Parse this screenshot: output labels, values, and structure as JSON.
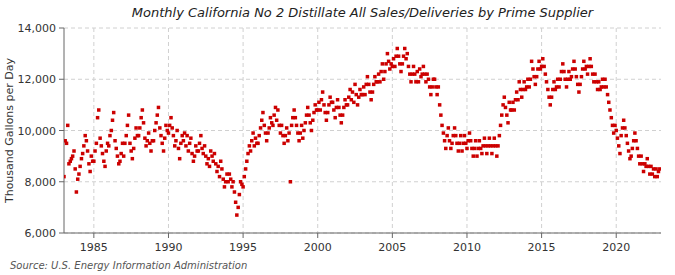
{
  "chart_data": {
    "type": "scatter",
    "title": "Monthly California No 2 Distillate All Sales/Deliveries by Prime Supplier",
    "ylabel": "Thousand Gallons per Day",
    "annotations": [
      "Source: U.S. Energy Information Administration"
    ],
    "color": "#cc0000",
    "marker": "square",
    "grid": true,
    "xlim": [
      1983.0,
      2023.0
    ],
    "ylim": [
      6000,
      14000
    ],
    "xticks": [
      1985,
      1990,
      1995,
      2000,
      2005,
      2010,
      2015,
      2020
    ],
    "yticks": [
      {
        "value": 6000,
        "label": "6,000"
      },
      {
        "value": 8000,
        "label": "8,000"
      },
      {
        "value": 10000,
        "label": "10,000"
      },
      {
        "value": 12000,
        "label": "12,000"
      },
      {
        "value": 14000,
        "label": "14,000"
      }
    ],
    "x": [
      1983.0,
      1983.08,
      1983.17,
      1983.25,
      1983.33,
      1983.42,
      1983.5,
      1983.58,
      1983.67,
      1983.75,
      1983.83,
      1983.92,
      1984.0,
      1984.08,
      1984.17,
      1984.25,
      1984.33,
      1984.42,
      1984.5,
      1984.58,
      1984.67,
      1984.75,
      1984.83,
      1984.92,
      1985.0,
      1985.08,
      1985.17,
      1985.25,
      1985.33,
      1985.42,
      1985.5,
      1985.58,
      1985.67,
      1985.75,
      1985.83,
      1985.92,
      1986.0,
      1986.08,
      1986.17,
      1986.25,
      1986.33,
      1986.42,
      1986.5,
      1986.58,
      1986.67,
      1986.75,
      1986.83,
      1986.92,
      1987.0,
      1987.08,
      1987.17,
      1987.25,
      1987.33,
      1987.42,
      1987.5,
      1987.58,
      1987.67,
      1987.75,
      1987.83,
      1987.92,
      1988.0,
      1988.08,
      1988.17,
      1988.25,
      1988.33,
      1988.42,
      1988.5,
      1988.58,
      1988.67,
      1988.75,
      1988.83,
      1988.92,
      1989.0,
      1989.08,
      1989.17,
      1989.25,
      1989.33,
      1989.42,
      1989.5,
      1989.58,
      1989.67,
      1989.75,
      1989.83,
      1989.92,
      1990.0,
      1990.08,
      1990.17,
      1990.25,
      1990.33,
      1990.42,
      1990.5,
      1990.58,
      1990.67,
      1990.75,
      1990.83,
      1990.92,
      1991.0,
      1991.08,
      1991.17,
      1991.25,
      1991.33,
      1991.42,
      1991.5,
      1991.58,
      1991.67,
      1991.75,
      1991.83,
      1991.92,
      1992.0,
      1992.08,
      1992.17,
      1992.25,
      1992.33,
      1992.42,
      1992.5,
      1992.58,
      1992.67,
      1992.75,
      1992.83,
      1992.92,
      1993.0,
      1993.08,
      1993.17,
      1993.25,
      1993.33,
      1993.42,
      1993.5,
      1993.58,
      1993.67,
      1993.75,
      1993.83,
      1993.92,
      1994.0,
      1994.08,
      1994.17,
      1994.25,
      1994.33,
      1994.42,
      1994.5,
      1994.58,
      1994.67,
      1994.75,
      1994.83,
      1994.92,
      1995.0,
      1995.08,
      1995.17,
      1995.25,
      1995.33,
      1995.42,
      1995.5,
      1995.58,
      1995.67,
      1995.75,
      1995.83,
      1995.92,
      1996.0,
      1996.08,
      1996.17,
      1996.25,
      1996.33,
      1996.42,
      1996.5,
      1996.58,
      1996.67,
      1996.75,
      1996.83,
      1996.92,
      1997.0,
      1997.08,
      1997.17,
      1997.25,
      1997.33,
      1997.42,
      1997.5,
      1997.58,
      1997.67,
      1997.75,
      1997.83,
      1997.92,
      1998.0,
      1998.08,
      1998.17,
      1998.25,
      1998.33,
      1998.42,
      1998.5,
      1998.58,
      1998.67,
      1998.75,
      1998.83,
      1998.92,
      1999.0,
      1999.08,
      1999.17,
      1999.25,
      1999.33,
      1999.42,
      1999.5,
      1999.58,
      1999.67,
      1999.75,
      1999.83,
      1999.92,
      2000.0,
      2000.08,
      2000.17,
      2000.25,
      2000.33,
      2000.42,
      2000.5,
      2000.58,
      2000.67,
      2000.75,
      2000.83,
      2000.92,
      2001.0,
      2001.08,
      2001.17,
      2001.25,
      2001.33,
      2001.42,
      2001.5,
      2001.58,
      2001.67,
      2001.75,
      2001.83,
      2001.92,
      2002.0,
      2002.08,
      2002.17,
      2002.25,
      2002.33,
      2002.42,
      2002.5,
      2002.58,
      2002.67,
      2002.75,
      2002.83,
      2002.92,
      2003.0,
      2003.08,
      2003.17,
      2003.25,
      2003.33,
      2003.42,
      2003.5,
      2003.58,
      2003.67,
      2003.75,
      2003.83,
      2003.92,
      2004.0,
      2004.08,
      2004.17,
      2004.25,
      2004.33,
      2004.42,
      2004.5,
      2004.58,
      2004.67,
      2004.75,
      2004.83,
      2004.92,
      2005.0,
      2005.08,
      2005.17,
      2005.25,
      2005.33,
      2005.42,
      2005.5,
      2005.58,
      2005.67,
      2005.75,
      2005.83,
      2005.92,
      2006.0,
      2006.08,
      2006.17,
      2006.25,
      2006.33,
      2006.42,
      2006.5,
      2006.58,
      2006.67,
      2006.75,
      2006.83,
      2006.92,
      2007.0,
      2007.08,
      2007.17,
      2007.25,
      2007.33,
      2007.42,
      2007.5,
      2007.58,
      2007.67,
      2007.75,
      2007.83,
      2007.92,
      2008.0,
      2008.08,
      2008.17,
      2008.25,
      2008.33,
      2008.42,
      2008.5,
      2008.58,
      2008.67,
      2008.75,
      2008.83,
      2008.92,
      2009.0,
      2009.08,
      2009.17,
      2009.25,
      2009.33,
      2009.42,
      2009.5,
      2009.58,
      2009.67,
      2009.75,
      2009.83,
      2009.92,
      2010.0,
      2010.08,
      2010.17,
      2010.25,
      2010.33,
      2010.42,
      2010.5,
      2010.58,
      2010.67,
      2010.75,
      2010.83,
      2010.92,
      2011.0,
      2011.08,
      2011.17,
      2011.25,
      2011.33,
      2011.42,
      2011.5,
      2011.58,
      2011.67,
      2011.75,
      2011.83,
      2011.92,
      2012.0,
      2012.08,
      2012.17,
      2012.25,
      2012.33,
      2012.42,
      2012.5,
      2012.58,
      2012.67,
      2012.75,
      2012.83,
      2012.92,
      2013.0,
      2013.08,
      2013.17,
      2013.25,
      2013.33,
      2013.42,
      2013.5,
      2013.58,
      2013.67,
      2013.75,
      2013.83,
      2013.92,
      2014.0,
      2014.08,
      2014.17,
      2014.25,
      2014.33,
      2014.42,
      2014.5,
      2014.58,
      2014.67,
      2014.75,
      2014.83,
      2014.92,
      2015.0,
      2015.08,
      2015.17,
      2015.25,
      2015.33,
      2015.42,
      2015.5,
      2015.58,
      2015.67,
      2015.75,
      2015.83,
      2015.92,
      2016.0,
      2016.08,
      2016.17,
      2016.25,
      2016.33,
      2016.42,
      2016.5,
      2016.58,
      2016.67,
      2016.75,
      2016.83,
      2016.92,
      2017.0,
      2017.08,
      2017.17,
      2017.25,
      2017.33,
      2017.42,
      2017.5,
      2017.58,
      2017.67,
      2017.75,
      2017.83,
      2017.92,
      2018.0,
      2018.08,
      2018.17,
      2018.25,
      2018.33,
      2018.42,
      2018.5,
      2018.58,
      2018.67,
      2018.75,
      2018.83,
      2018.92,
      2019.0,
      2019.08,
      2019.17,
      2019.25,
      2019.33,
      2019.42,
      2019.5,
      2019.58,
      2019.67,
      2019.75,
      2019.83,
      2019.92,
      2020.0,
      2020.08,
      2020.17,
      2020.25,
      2020.33,
      2020.42,
      2020.5,
      2020.58,
      2020.67,
      2020.75,
      2020.83,
      2020.92,
      2021.0,
      2021.08,
      2021.17,
      2021.25,
      2021.33,
      2021.42,
      2021.5,
      2021.58,
      2021.67,
      2021.75,
      2021.83,
      2021.92,
      2022.0,
      2022.08,
      2022.17,
      2022.25,
      2022.33,
      2022.42,
      2022.5,
      2022.58,
      2022.67,
      2022.75,
      2022.83,
      2022.92
    ],
    "values": [
      8200,
      9600,
      9500,
      10200,
      8700,
      8800,
      8900,
      9000,
      9200,
      8500,
      7600,
      8100,
      8300,
      8600,
      8900,
      9100,
      9400,
      9800,
      9600,
      9200,
      8700,
      8400,
      9000,
      8800,
      8800,
      9200,
      9500,
      10500,
      10800,
      9700,
      9400,
      9100,
      8800,
      8600,
      9200,
      9500,
      9400,
      9800,
      10000,
      10400,
      10700,
      9600,
      9300,
      9000,
      8700,
      8800,
      9100,
      9500,
      9000,
      9500,
      9800,
      10200,
      10600,
      9500,
      9200,
      8900,
      9300,
      9700,
      10100,
      9800,
      9800,
      10100,
      10500,
      10800,
      10300,
      9700,
      9400,
      9600,
      9900,
      9500,
      9200,
      9600,
      9600,
      10000,
      10300,
      10600,
      10900,
      10100,
      9800,
      9500,
      9200,
      9700,
      10200,
      10000,
      9900,
      10200,
      10500,
      10100,
      9800,
      9400,
      9600,
      10000,
      9300,
      8900,
      9500,
      9800,
      9600,
      9900,
      9400,
      9800,
      9200,
      9500,
      9700,
      9100,
      8800,
      9000,
      9400,
      9200,
      9200,
      9500,
      9800,
      9300,
      9100,
      9400,
      9000,
      8700,
      8900,
      8600,
      9200,
      9000,
      8800,
      9100,
      8700,
      8400,
      8600,
      8200,
      8800,
      8500,
      8100,
      7800,
      8000,
      8300,
      8000,
      8300,
      8100,
      7800,
      8000,
      7600,
      7200,
      6700,
      7000,
      7500,
      8000,
      7900,
      7800,
      8200,
      8500,
      8800,
      9100,
      9400,
      9200,
      9600,
      9900,
      9400,
      9700,
      9500,
      9500,
      9800,
      10100,
      10400,
      10700,
      10200,
      9900,
      9600,
      9900,
      10100,
      10500,
      10300,
      10200,
      10600,
      10900,
      10400,
      10800,
      10200,
      9900,
      10200,
      9800,
      9500,
      9800,
      10100,
      9600,
      9900,
      8000,
      10200,
      10500,
      10800,
      10500,
      10200,
      9900,
      9600,
      9900,
      10200,
      9700,
      10000,
      10300,
      10600,
      10900,
      10600,
      10300,
      10000,
      10400,
      10700,
      11000,
      10800,
      10800,
      11100,
      10800,
      11200,
      11500,
      11000,
      10700,
      10400,
      10700,
      11000,
      11300,
      11100,
      11100,
      10800,
      10500,
      10900,
      11200,
      10900,
      10600,
      10300,
      10600,
      10900,
      11200,
      11000,
      11000,
      11300,
      11600,
      11200,
      11500,
      11100,
      11800,
      11400,
      11000,
      11300,
      11600,
      11400,
      11400,
      11700,
      11400,
      11800,
      12100,
      11800,
      11500,
      11200,
      11500,
      11800,
      12100,
      11900,
      11900,
      12200,
      11900,
      12300,
      12600,
      12000,
      12300,
      12600,
      13000,
      12700,
      12400,
      12600,
      12500,
      12800,
      12500,
      12900,
      13200,
      12900,
      12600,
      12300,
      12600,
      12900,
      13200,
      12800,
      13000,
      12500,
      12200,
      11900,
      12200,
      12500,
      12200,
      11900,
      12300,
      11900,
      12400,
      12100,
      12200,
      12500,
      12200,
      11900,
      12200,
      12000,
      11700,
      11400,
      11700,
      12000,
      12000,
      11700,
      11400,
      11700,
      11000,
      10600,
      10200,
      9900,
      9600,
      9300,
      9800,
      10100,
      9600,
      9300,
      9500,
      9800,
      10100,
      9800,
      9500,
      9200,
      9500,
      9800,
      9200,
      9500,
      9800,
      9500,
      9300,
      9600,
      9900,
      9600,
      9300,
      9000,
      9300,
      9600,
      9000,
      9300,
      9600,
      9300,
      9100,
      9400,
      9700,
      9400,
      9100,
      9400,
      9700,
      9400,
      9100,
      9400,
      9700,
      9400,
      9000,
      9400,
      9800,
      10200,
      10600,
      11000,
      11300,
      10900,
      10600,
      10300,
      11100,
      10800,
      10800,
      11100,
      10800,
      11200,
      11500,
      11200,
      11900,
      11600,
      11300,
      11600,
      11900,
      11600,
      11700,
      12000,
      11700,
      12000,
      12700,
      12400,
      12100,
      11800,
      12100,
      12400,
      12700,
      12400,
      12500,
      12800,
      12500,
      12200,
      11900,
      11600,
      11300,
      11000,
      11300,
      11600,
      11900,
      11600,
      11700,
      12000,
      11700,
      12000,
      12300,
      12600,
      12300,
      12000,
      11700,
      12000,
      12300,
      12000,
      12100,
      12400,
      12700,
      12400,
      12100,
      11800,
      11500,
      11800,
      12100,
      12400,
      12700,
      12400,
      12500,
      12200,
      12500,
      12800,
      12500,
      12200,
      11900,
      12200,
      11900,
      11600,
      11900,
      11600,
      11700,
      12000,
      11700,
      12000,
      11700,
      11400,
      11100,
      10800,
      10500,
      10200,
      9900,
      10200,
      10000,
      9700,
      9400,
      9100,
      9800,
      10100,
      10400,
      10100,
      9800,
      9500,
      9200,
      8900,
      9000,
      9300,
      9600,
      9900,
      9600,
      9300,
      9000,
      8700,
      9000,
      8700,
      8400,
      8700,
      8600,
      8900,
      8600,
      8300,
      8600,
      8300,
      8500,
      8200,
      8500,
      8200,
      8400,
      8500
    ]
  }
}
